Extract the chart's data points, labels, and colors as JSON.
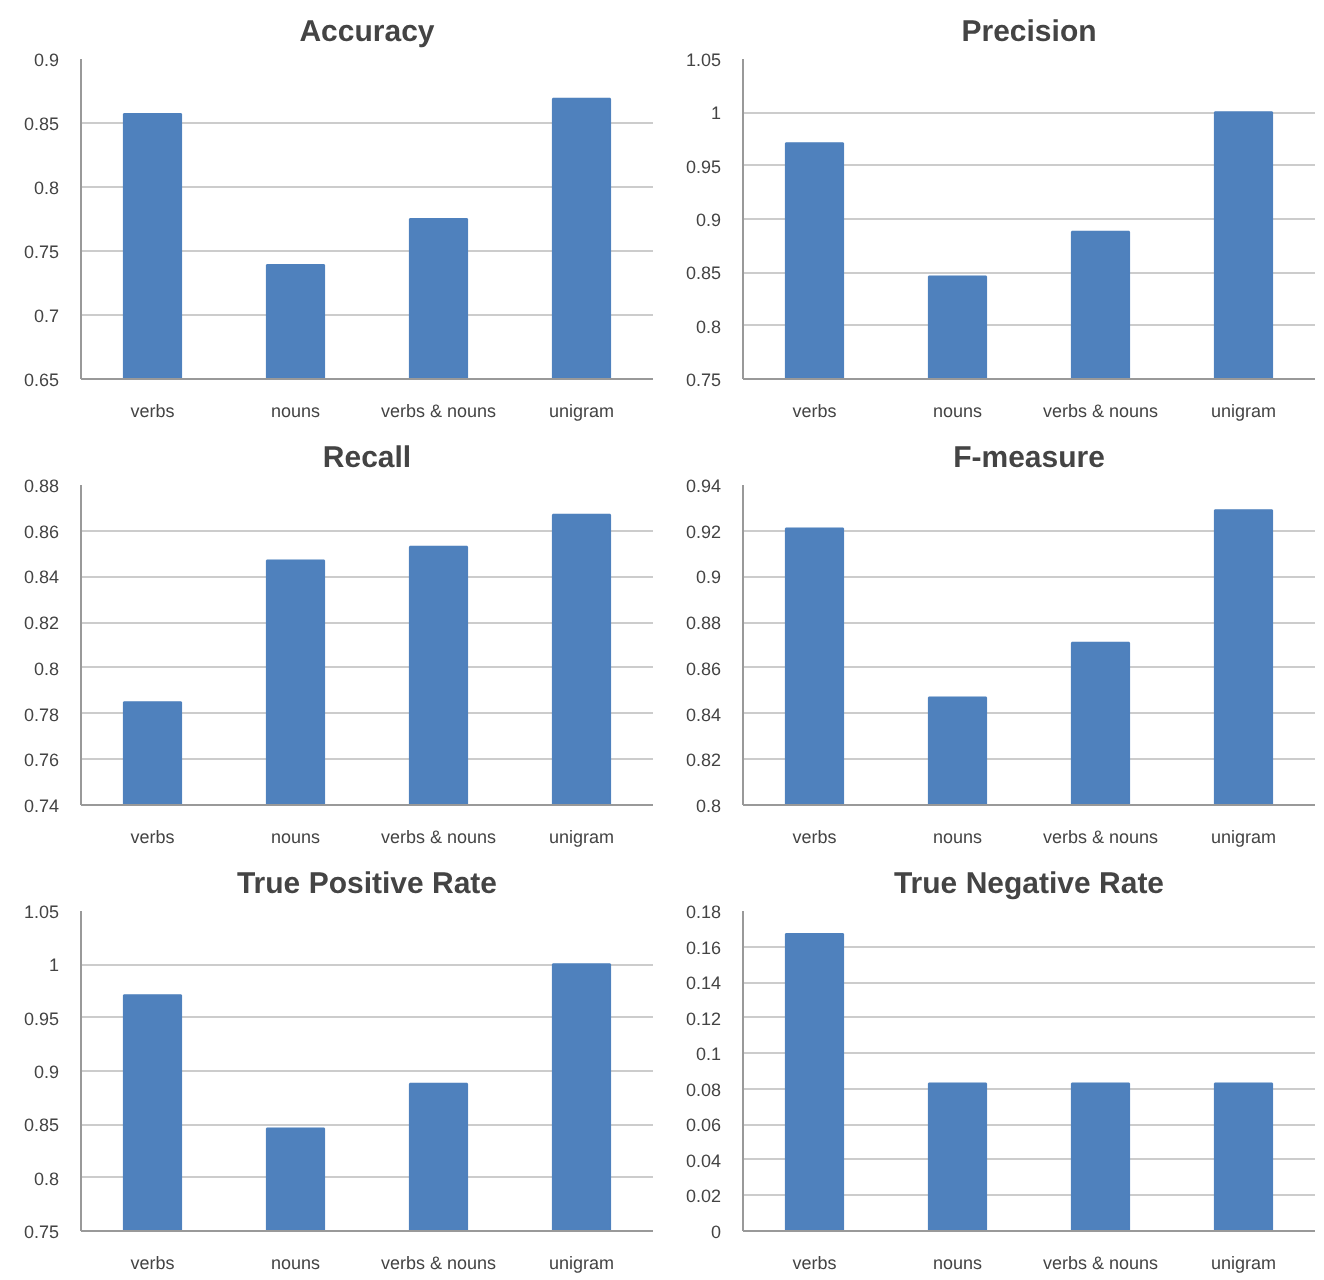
{
  "chart_data": [
    {
      "type": "bar",
      "title": "Accuracy",
      "categories": [
        "verbs",
        "nouns",
        "verbs & nouns",
        "unigram"
      ],
      "values": [
        0.857,
        0.739,
        0.775,
        0.869
      ],
      "color": "#4f81bd",
      "ylim": [
        0.65,
        0.9
      ],
      "yticks": [
        0.65,
        0.7,
        0.75,
        0.8,
        0.85,
        0.9
      ],
      "grid": "y"
    },
    {
      "type": "bar",
      "title": "Precision",
      "categories": [
        "verbs",
        "nouns",
        "verbs & nouns",
        "unigram"
      ],
      "values": [
        0.971,
        0.846,
        0.888,
        1.0
      ],
      "color": "#4f81bd",
      "ylim": [
        0.75,
        1.05
      ],
      "yticks": [
        0.75,
        0.8,
        0.85,
        0.9,
        0.95,
        1,
        1.05
      ],
      "grid": "y"
    },
    {
      "type": "bar",
      "title": "Recall",
      "categories": [
        "verbs",
        "nouns",
        "verbs & nouns",
        "unigram"
      ],
      "values": [
        0.785,
        0.847,
        0.853,
        0.867
      ],
      "color": "#4f81bd",
      "ylim": [
        0.74,
        0.88
      ],
      "yticks": [
        0.74,
        0.76,
        0.78,
        0.8,
        0.82,
        0.84,
        0.86,
        0.88
      ],
      "grid": "y"
    },
    {
      "type": "bar",
      "title": "F-measure",
      "categories": [
        "verbs",
        "nouns",
        "verbs & nouns",
        "unigram"
      ],
      "values": [
        0.921,
        0.847,
        0.871,
        0.929
      ],
      "color": "#4f81bd",
      "ylim": [
        0.8,
        0.94
      ],
      "yticks": [
        0.8,
        0.82,
        0.84,
        0.86,
        0.88,
        0.9,
        0.92,
        0.94
      ],
      "grid": "y"
    },
    {
      "type": "bar",
      "title": "True Positive Rate",
      "categories": [
        "verbs",
        "nouns",
        "verbs & nouns",
        "unigram"
      ],
      "values": [
        0.971,
        0.846,
        0.888,
        1.0
      ],
      "color": "#4f81bd",
      "ylim": [
        0.75,
        1.05
      ],
      "yticks": [
        0.75,
        0.8,
        0.85,
        0.9,
        0.95,
        1,
        1.05
      ],
      "grid": "y"
    },
    {
      "type": "bar",
      "title": "True Negative Rate",
      "categories": [
        "verbs",
        "nouns",
        "verbs & nouns",
        "unigram"
      ],
      "values": [
        0.167,
        0.083,
        0.083,
        0.083
      ],
      "color": "#4f81bd",
      "ylim": [
        0,
        0.18
      ],
      "yticks": [
        0,
        0.02,
        0.04,
        0.06,
        0.08,
        0.1,
        0.12,
        0.14,
        0.16,
        0.18
      ],
      "grid": "y"
    }
  ]
}
